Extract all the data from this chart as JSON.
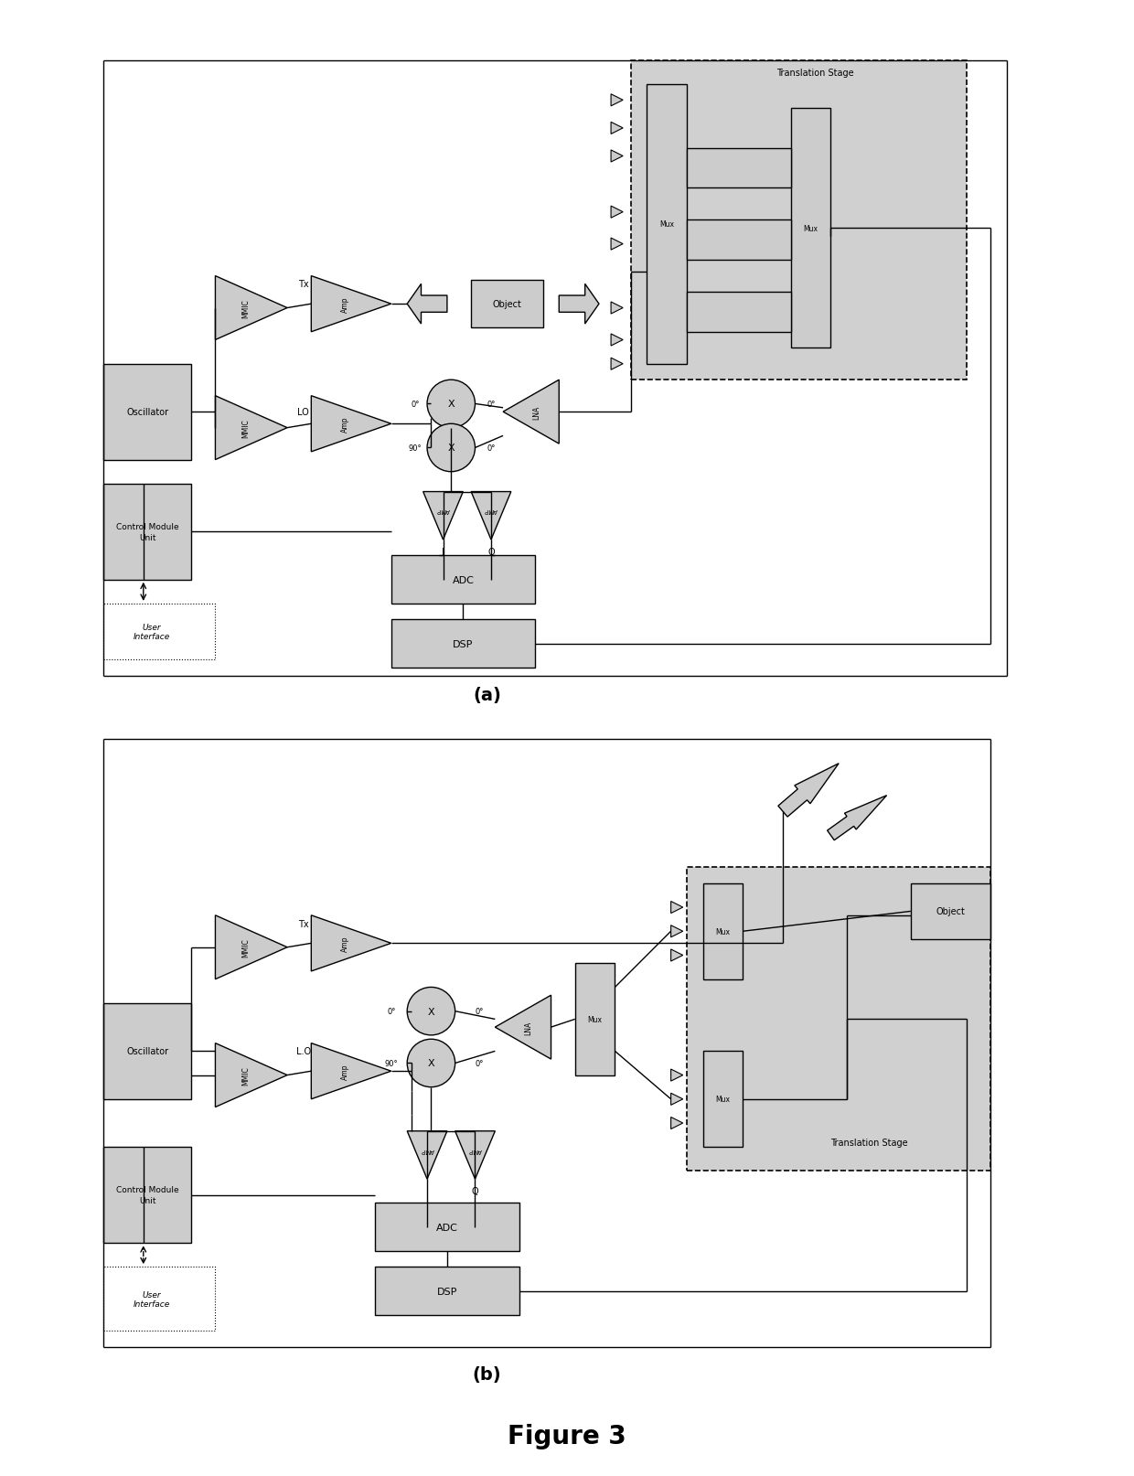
{
  "bg_color": "#ffffff",
  "fill": "#cccccc",
  "fill_ts": "#d0d0d0",
  "edge": "#000000",
  "lw": 1.0,
  "fig_label_a": "(a)",
  "fig_label_b": "(b)",
  "fig_label_main": "Figure 3"
}
